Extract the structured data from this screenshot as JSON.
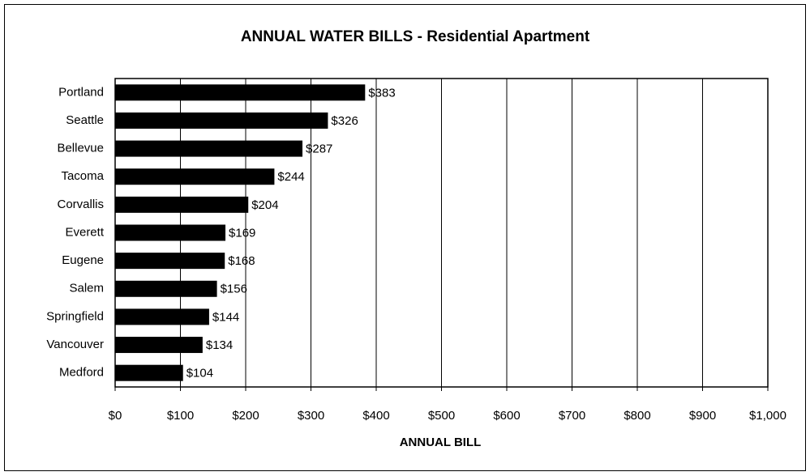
{
  "chart_data": {
    "type": "hbar",
    "title": "ANNUAL WATER BILLS - Residential Apartment",
    "categories": [
      "Portland",
      "Seattle",
      "Bellevue",
      "Tacoma",
      "Corvallis",
      "Everett",
      "Eugene",
      "Salem",
      "Springfield",
      "Vancouver",
      "Medford"
    ],
    "values": [
      383,
      326,
      287,
      244,
      204,
      169,
      168,
      156,
      144,
      134,
      104
    ],
    "value_labels": [
      "$383",
      "$326",
      "$287",
      "$244",
      "$204",
      "$169",
      "$168",
      "$156",
      "$144",
      "$134",
      "$104"
    ],
    "color": "#000000",
    "xlabel": "ANNUAL BILL",
    "xlim": [
      0,
      1000
    ],
    "xticks": [
      {
        "value": 0,
        "label": "$0"
      },
      {
        "value": 100,
        "label": "$100"
      },
      {
        "value": 200,
        "label": "$200"
      },
      {
        "value": 300,
        "label": "$300"
      },
      {
        "value": 400,
        "label": "$400"
      },
      {
        "value": 500,
        "label": "$500"
      },
      {
        "value": 600,
        "label": "$600"
      },
      {
        "value": 700,
        "label": "$700"
      },
      {
        "value": 800,
        "label": "$800"
      },
      {
        "value": 900,
        "label": "$900"
      },
      {
        "value": 1000,
        "label": "$1,000"
      }
    ],
    "grid": true
  }
}
